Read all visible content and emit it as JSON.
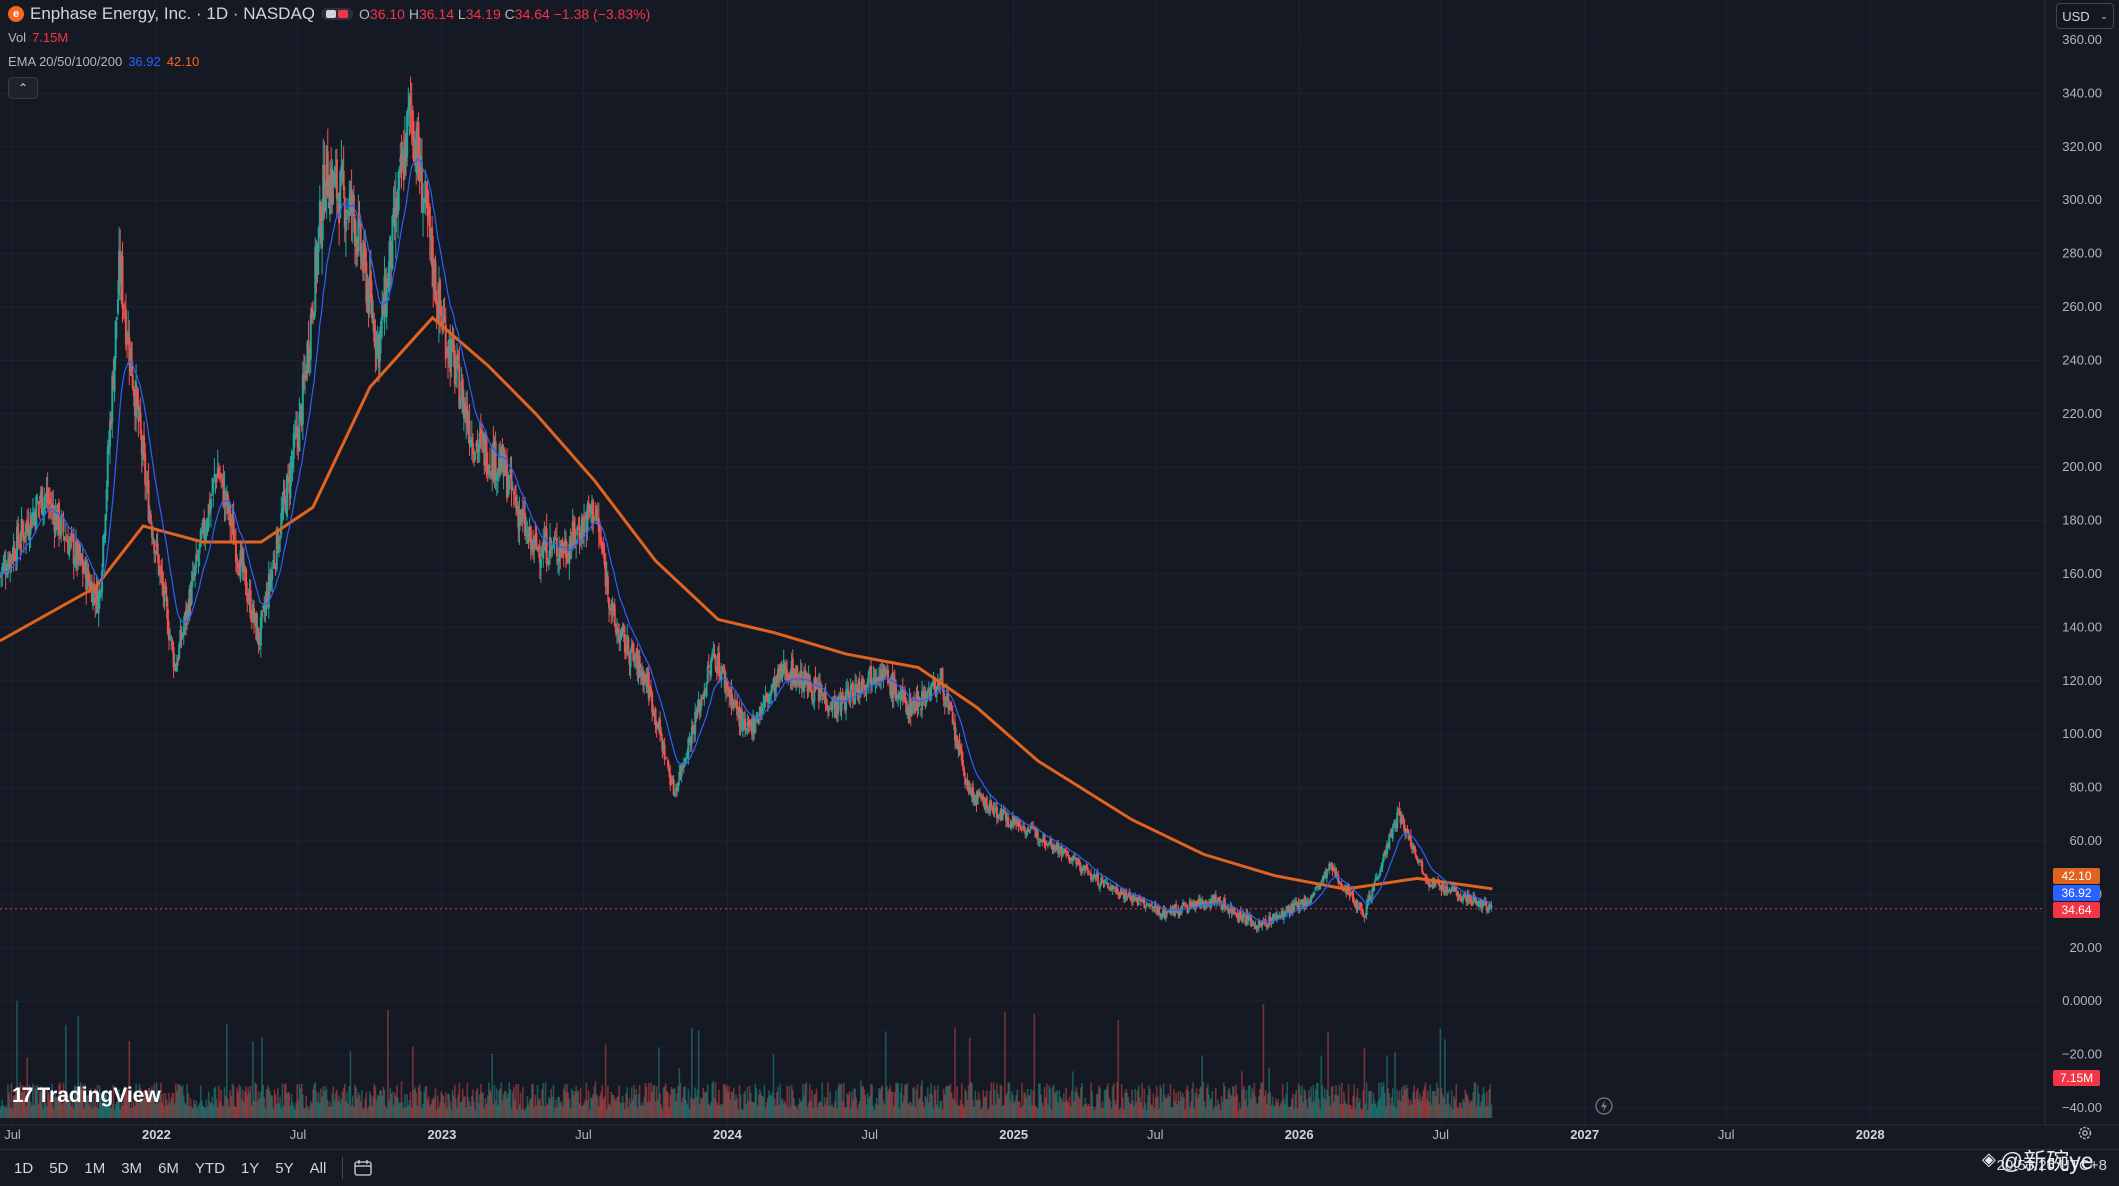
{
  "header": {
    "symbol_title": "Enphase Energy, Inc. · 1D · NASDAQ",
    "open_label": "O",
    "open": "36.10",
    "high_label": "H",
    "high": "36.14",
    "low_label": "L",
    "low": "34.19",
    "close_label": "C",
    "close": "34.64",
    "change": "−1.38 (−3.83%)",
    "vol_label": "Vol",
    "vol_value": "7.15M",
    "ema_label": "EMA 20/50/100/200",
    "ema_a": "36.92",
    "ema_b": "42.10"
  },
  "currency": {
    "label": "USD"
  },
  "price_tags": {
    "ema_slow": "42.10",
    "ema_fast": "36.92",
    "last": "34.64",
    "volume": "7.15M"
  },
  "branding": {
    "logo_text": "TradingView"
  },
  "range_buttons": [
    "1D",
    "5D",
    "1M",
    "3M",
    "6M",
    "YTD",
    "1Y",
    "5Y",
    "All"
  ],
  "clock": "20:53:26 UTC+8",
  "watermark": "@新碗ye",
  "colors": {
    "background": "#151924",
    "up": "#26a69a",
    "down": "#ef5350",
    "ema_fast": "#2962ff",
    "ema_slow": "#e0631f",
    "last_price": "#f23645"
  },
  "chart_data": {
    "type": "candlestick",
    "x_axis_labels": [
      "Jul",
      "2022",
      "Jul",
      "2023",
      "Jul",
      "2024",
      "Jul",
      "2025",
      "Jul",
      "2026",
      "Jul",
      "2027",
      "Jul",
      "2028"
    ],
    "y_axis_labels": [
      "360.00",
      "340.00",
      "320.00",
      "300.00",
      "280.00",
      "260.00",
      "240.00",
      "220.00",
      "200.00",
      "180.00",
      "160.00",
      "140.00",
      "120.00",
      "100.00",
      "80.00",
      "60.00",
      "40.00",
      "20.00",
      "0.0000",
      "−20.00",
      "−40.00"
    ],
    "ylim": [
      -40,
      360
    ],
    "x_range": [
      "2021-06-15",
      "2028-06-15"
    ],
    "price_series_approx": [
      {
        "x": "2021-06-15",
        "y": 160
      },
      {
        "x": "2021-08-10",
        "y": 190
      },
      {
        "x": "2021-10-20",
        "y": 150
      },
      {
        "x": "2021-11-15",
        "y": 275
      },
      {
        "x": "2021-12-20",
        "y": 190
      },
      {
        "x": "2022-01-25",
        "y": 125
      },
      {
        "x": "2022-03-20",
        "y": 200
      },
      {
        "x": "2022-05-12",
        "y": 135
      },
      {
        "x": "2022-07-05",
        "y": 220
      },
      {
        "x": "2022-08-05",
        "y": 310
      },
      {
        "x": "2022-09-10",
        "y": 295
      },
      {
        "x": "2022-10-12",
        "y": 245
      },
      {
        "x": "2022-11-22",
        "y": 335
      },
      {
        "x": "2022-12-28",
        "y": 260
      },
      {
        "x": "2023-02-10",
        "y": 210
      },
      {
        "x": "2023-03-20",
        "y": 200
      },
      {
        "x": "2023-04-25",
        "y": 170
      },
      {
        "x": "2023-06-10",
        "y": 170
      },
      {
        "x": "2023-07-15",
        "y": 185
      },
      {
        "x": "2023-08-10",
        "y": 140
      },
      {
        "x": "2023-09-20",
        "y": 120
      },
      {
        "x": "2023-10-25",
        "y": 78
      },
      {
        "x": "2023-12-15",
        "y": 130
      },
      {
        "x": "2024-01-25",
        "y": 100
      },
      {
        "x": "2024-03-15",
        "y": 125
      },
      {
        "x": "2024-05-20",
        "y": 110
      },
      {
        "x": "2024-07-10",
        "y": 125
      },
      {
        "x": "2024-08-20",
        "y": 110
      },
      {
        "x": "2024-10-01",
        "y": 120
      },
      {
        "x": "2024-11-05",
        "y": 78
      },
      {
        "x": "2024-12-15",
        "y": 70
      },
      {
        "x": "2025-02-15",
        "y": 60
      },
      {
        "x": "2025-04-20",
        "y": 45
      },
      {
        "x": "2025-07-10",
        "y": 33
      },
      {
        "x": "2025-09-15",
        "y": 38
      },
      {
        "x": "2025-11-10",
        "y": 28
      },
      {
        "x": "2026-01-15",
        "y": 38
      },
      {
        "x": "2026-02-10",
        "y": 50
      },
      {
        "x": "2026-03-25",
        "y": 33
      },
      {
        "x": "2026-05-08",
        "y": 70
      },
      {
        "x": "2026-06-15",
        "y": 45
      },
      {
        "x": "2026-09-05",
        "y": 34.64
      }
    ],
    "ema_fast": {
      "name": "EMA 20",
      "last": 36.92
    },
    "ema_slow_series_approx": [
      {
        "x": "2021-06-15",
        "y": 135
      },
      {
        "x": "2021-10-15",
        "y": 155
      },
      {
        "x": "2021-12-15",
        "y": 178
      },
      {
        "x": "2022-03-01",
        "y": 172
      },
      {
        "x": "2022-05-15",
        "y": 172
      },
      {
        "x": "2022-07-20",
        "y": 185
      },
      {
        "x": "2022-10-01",
        "y": 230
      },
      {
        "x": "2022-12-20",
        "y": 256
      },
      {
        "x": "2023-03-01",
        "y": 238
      },
      {
        "x": "2023-05-01",
        "y": 220
      },
      {
        "x": "2023-07-15",
        "y": 195
      },
      {
        "x": "2023-10-01",
        "y": 165
      },
      {
        "x": "2023-12-20",
        "y": 143
      },
      {
        "x": "2024-03-01",
        "y": 138
      },
      {
        "x": "2024-06-01",
        "y": 130
      },
      {
        "x": "2024-09-01",
        "y": 125
      },
      {
        "x": "2024-11-15",
        "y": 110
      },
      {
        "x": "2025-02-01",
        "y": 90
      },
      {
        "x": "2025-06-01",
        "y": 68
      },
      {
        "x": "2025-09-01",
        "y": 55
      },
      {
        "x": "2025-12-01",
        "y": 47
      },
      {
        "x": "2026-03-01",
        "y": 42
      },
      {
        "x": "2026-06-01",
        "y": 46
      },
      {
        "x": "2026-09-05",
        "y": 42.1
      }
    ],
    "last_price": 34.64,
    "last_volume": "7.15M",
    "grid": true
  }
}
